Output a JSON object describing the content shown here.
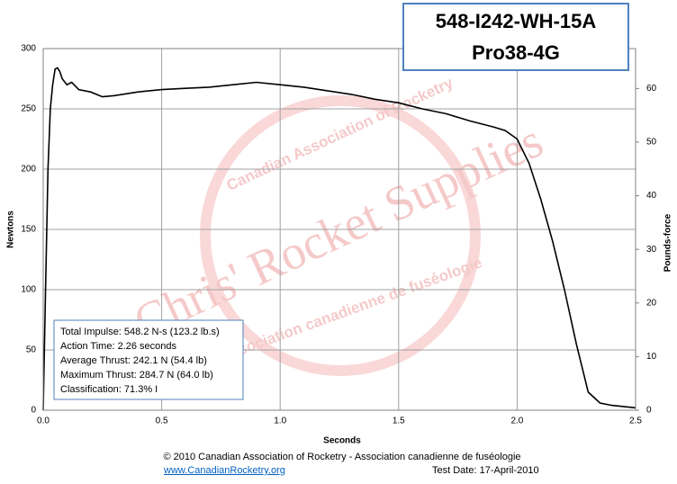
{
  "chart_data": {
    "type": "line",
    "title": [
      "548-I242-WH-15A",
      "Pro38-4G"
    ],
    "x_label": "Seconds",
    "y_label": "Newtons",
    "y2_label": "Pounds-force",
    "x": [
      0,
      0.01,
      0.02,
      0.03,
      0.04,
      0.05,
      0.06,
      0.07,
      0.08,
      0.1,
      0.12,
      0.15,
      0.2,
      0.25,
      0.3,
      0.4,
      0.5,
      0.6,
      0.7,
      0.8,
      0.9,
      1.0,
      1.1,
      1.2,
      1.3,
      1.4,
      1.5,
      1.6,
      1.7,
      1.8,
      1.9,
      1.95,
      2.0,
      2.05,
      2.1,
      2.15,
      2.2,
      2.25,
      2.3,
      2.35,
      2.4,
      2.5
    ],
    "values": [
      0,
      100,
      200,
      250,
      270,
      283,
      284,
      281,
      275,
      270,
      272,
      266,
      264,
      260,
      261,
      264,
      266,
      267,
      268,
      270,
      272,
      270,
      268,
      265,
      262,
      258,
      255,
      250,
      246,
      240,
      235,
      232,
      225,
      205,
      175,
      140,
      100,
      55,
      15,
      6,
      4,
      2
    ],
    "color": "#000000",
    "xlim": [
      0,
      2.5
    ],
    "xticks": [
      {
        "value": 0,
        "label": "0.0"
      },
      0.5,
      {
        "value": 1,
        "label": "1.0"
      },
      1.5,
      {
        "value": 2,
        "label": "2.0"
      },
      2.5
    ],
    "ylim": [
      0,
      300
    ],
    "yticks": [
      0,
      50,
      100,
      150,
      200,
      250,
      300
    ],
    "y2lim": [
      0,
      67.44
    ],
    "y2ticks": [
      0,
      10,
      20,
      30,
      40,
      50,
      60
    ],
    "grid": true,
    "info_box": [
      "Total Impulse: 548.2 N-s (123.2 lb.s)",
      "Action Time: 2.26 seconds",
      "Average Thrust: 242.1 N (54.4 lb)",
      "Maximum Thrust: 284.7 N (64.0 lb)",
      "Classification: 71.3% I"
    ],
    "watermark": [
      "Chris' Rocket Supplies",
      "Canadian Association of Rocketry",
      "Association canadienne de fuséologie"
    ],
    "footer": {
      "copyright": "© 2010 Canadian Association of Rocketry - Association canadienne de fuséologie",
      "website": "www.CanadianRocketry.org",
      "test_date": "Test  Date: 17-April-2010"
    }
  }
}
